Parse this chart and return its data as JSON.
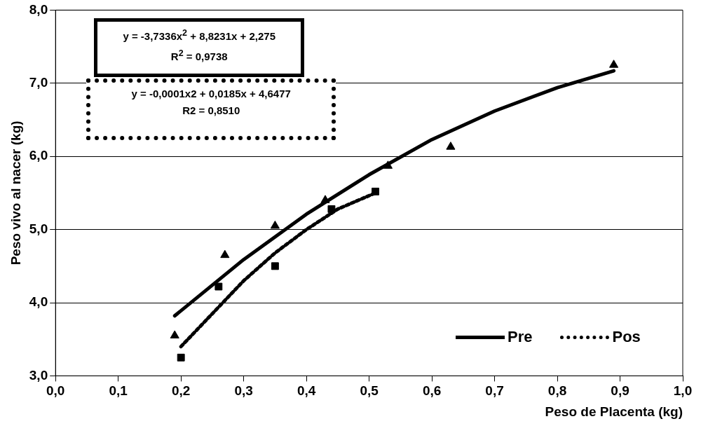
{
  "chart_data": {
    "type": "scatter",
    "xlabel": "Peso de Placenta (kg)",
    "ylabel": "Peso vivo al nacer (kg)",
    "xlim": [
      0,
      1
    ],
    "xticks": [
      {
        "value": 0,
        "label": "0,0"
      },
      {
        "value": 0.1,
        "label": "0,1"
      },
      {
        "value": 0.2,
        "label": "0,2"
      },
      {
        "value": 0.3,
        "label": "0,3"
      },
      {
        "value": 0.4,
        "label": "0,4"
      },
      {
        "value": 0.5,
        "label": "0,5"
      },
      {
        "value": 0.6,
        "label": "0,6"
      },
      {
        "value": 0.7,
        "label": "0,7"
      },
      {
        "value": 0.8,
        "label": "0,8"
      },
      {
        "value": 0.9,
        "label": "0,9"
      },
      {
        "value": 1,
        "label": "1,0"
      }
    ],
    "ylim": [
      3,
      8
    ],
    "yticks": [
      {
        "value": 3,
        "label": "3,0"
      },
      {
        "value": 4,
        "label": "4,0"
      },
      {
        "value": 5,
        "label": "5,0"
      },
      {
        "value": 6,
        "label": "6,0"
      },
      {
        "value": 7,
        "label": "7,0"
      },
      {
        "value": 8,
        "label": "8,0"
      }
    ],
    "grid": "y",
    "legend": "bottom right",
    "series": [
      {
        "color": "#000000",
        "marker": "triangle",
        "x": [
          0.19,
          0.27,
          0.35,
          0.43,
          0.53,
          0.63,
          0.89
        ],
        "values": [
          3.55,
          4.65,
          5.05,
          5.4,
          5.87,
          6.13,
          7.25
        ]
      },
      {
        "color": "#000000",
        "marker": "square",
        "x": [
          0.2,
          0.26,
          0.35,
          0.44,
          0.51
        ],
        "values": [
          3.25,
          4.22,
          4.5,
          5.28,
          5.52
        ]
      },
      {
        "type": "line",
        "name": "Pre",
        "color": "#000000",
        "marker": "none",
        "line_style": "solid",
        "x": [
          0.19,
          0.3,
          0.4,
          0.5,
          0.6,
          0.7,
          0.8,
          0.89
        ],
        "values": [
          3.82,
          4.59,
          5.21,
          5.75,
          6.23,
          6.62,
          6.94,
          7.17
        ]
      },
      {
        "type": "line",
        "name": "Pos",
        "color": "#000000",
        "marker": "none",
        "line_style": "dotted",
        "x": [
          0.2,
          0.25,
          0.3,
          0.35,
          0.4,
          0.45,
          0.51
        ],
        "values": [
          3.4,
          3.85,
          4.3,
          4.68,
          5.0,
          5.28,
          5.5
        ]
      }
    ],
    "annotations": [
      "y = -3,7336x$^{2}$ + 8,8231x + 2,275",
      "R$^{2}$ = 0,9738",
      "y = -0,0001x2 + 0,0185x + 4,6477",
      "R2 = 0,8510"
    ]
  }
}
